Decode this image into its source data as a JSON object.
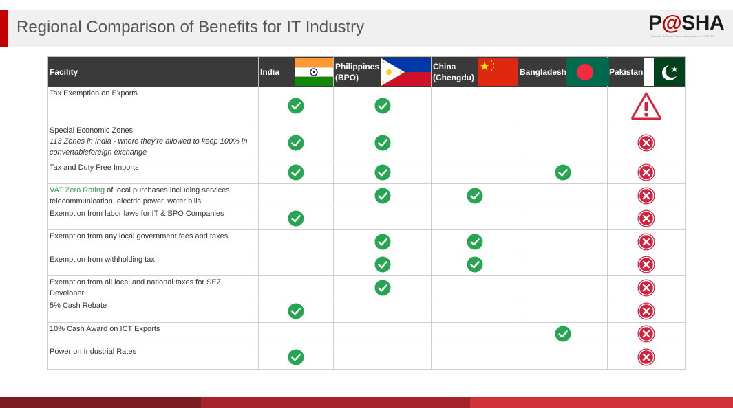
{
  "title": "Regional Comparison of Benefits for IT Industry",
  "logo": {
    "text_a": "P",
    "text_at": "@",
    "text_b": "SHA",
    "tagline": "Pakistan Software Houses Association for IT & ITES"
  },
  "colors": {
    "header_bg": "#3a3a3a",
    "accent_red": "#c00000",
    "check_green": "#27a552",
    "cross_red": "#d4213d"
  },
  "table": {
    "headers": {
      "facility": "Facility",
      "india": "India",
      "philippines_1": "Philippines",
      "philippines_2": "(BPO)",
      "china_1": "China",
      "china_2": "(Chengdu)",
      "bangladesh": "Bangladesh",
      "pakistan": "Pakistan"
    },
    "rows": [
      {
        "facility": "Tax Exemption on Exports",
        "marks": [
          "check",
          "check",
          "",
          "",
          "warning"
        ]
      },
      {
        "facility": "Special Economic Zones",
        "note": "113 Zones in India - where they're allowed to keep 100% in convertableforeign exchange",
        "marks": [
          "check",
          "check",
          "",
          "",
          "cross"
        ]
      },
      {
        "facility": "Tax and Duty Free Imports",
        "marks": [
          "check",
          "check",
          "",
          "check",
          "cross"
        ]
      },
      {
        "facility_highlight": "VAT Zero Rating",
        "facility_rest": " of local purchases including services, telecommunication, electric power, water bills",
        "marks": [
          "",
          "check",
          "check",
          "",
          "cross"
        ]
      },
      {
        "facility": "Exemption from labor laws for IT & BPO Companies",
        "marks": [
          "check",
          "",
          "",
          "",
          "cross"
        ]
      },
      {
        "facility": "Exemption from any local government fees and taxes",
        "marks": [
          "",
          "check",
          "check",
          "",
          "cross"
        ]
      },
      {
        "facility": "Exemption from withholding tax",
        "marks": [
          "",
          "check",
          "check",
          "",
          "cross"
        ]
      },
      {
        "facility": "Exemption from all local and national taxes for SEZ Developer",
        "marks": [
          "",
          "check",
          "",
          "",
          "cross"
        ]
      },
      {
        "facility": "5% Cash Rebate",
        "marks": [
          "check",
          "",
          "",
          "",
          "cross"
        ]
      },
      {
        "facility": "10% Cash Award on ICT Exports",
        "marks": [
          "",
          "",
          "",
          "check",
          "cross"
        ]
      },
      {
        "facility": "Power on Industrial Rates",
        "marks": [
          "check",
          "",
          "",
          "",
          "cross"
        ]
      }
    ]
  }
}
